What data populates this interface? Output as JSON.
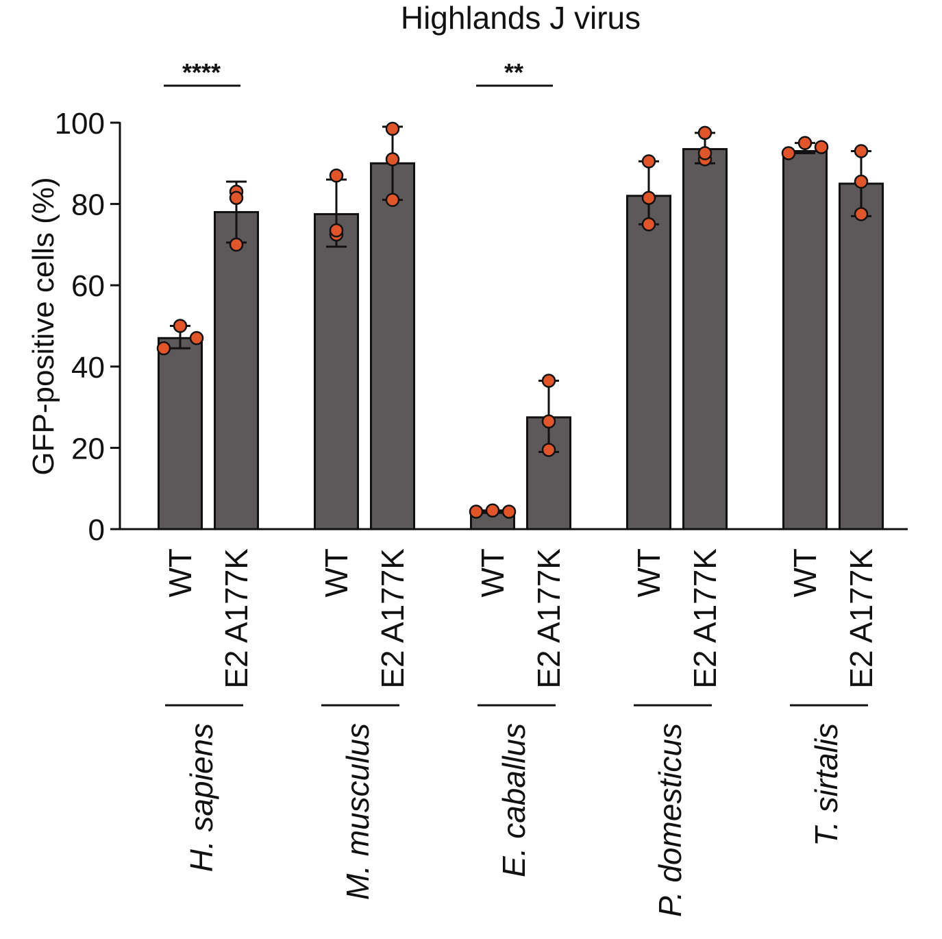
{
  "chart_data": {
    "type": "bar",
    "title": "Highlands J virus",
    "xlabel": "",
    "ylabel": "GFP-positive cells (%)",
    "ylim": [
      0,
      100
    ],
    "yticks": [
      0,
      20,
      40,
      60,
      80,
      100
    ],
    "grid": false,
    "legend": "none",
    "groups": [
      {
        "name": "H. sapiens",
        "bars": [
          {
            "label": "WT",
            "mean": 47,
            "sd_low": 44.5,
            "sd_high": 50,
            "points": [
              44.5,
              50,
              47
            ]
          },
          {
            "label": "E2 A177K",
            "mean": 78,
            "sd_low": 70.5,
            "sd_high": 85.5,
            "points": [
              83,
              70,
              81.5
            ]
          }
        ],
        "significance": "****"
      },
      {
        "name": "M. musculus",
        "bars": [
          {
            "label": "WT",
            "mean": 77.5,
            "sd_low": 69.5,
            "sd_high": 86,
            "points": [
              72.5,
              87,
              73.5
            ]
          },
          {
            "label": "E2 A177K",
            "mean": 90,
            "sd_low": 81,
            "sd_high": 99,
            "points": [
              98.5,
              91,
              81
            ]
          }
        ],
        "significance": ""
      },
      {
        "name": "E. caballus",
        "bars": [
          {
            "label": "WT",
            "mean": 4.3,
            "sd_low": 4,
            "sd_high": 4.6,
            "points": [
              4.3,
              4.6,
              4.3
            ]
          },
          {
            "label": "E2 A177K",
            "mean": 27.5,
            "sd_low": 19,
            "sd_high": 36.5,
            "points": [
              36.5,
              26.5,
              19.5
            ]
          }
        ],
        "significance": "**"
      },
      {
        "name": "P. domesticus",
        "bars": [
          {
            "label": "WT",
            "mean": 82,
            "sd_low": 75,
            "sd_high": 90.5,
            "points": [
              90.5,
              81.5,
              75
            ]
          },
          {
            "label": "E2 A177K",
            "mean": 93.5,
            "sd_low": 90,
            "sd_high": 97.5,
            "points": [
              91,
              97.5,
              92.5
            ]
          }
        ],
        "significance": ""
      },
      {
        "name": "T. sirtalis",
        "bars": [
          {
            "label": "WT",
            "mean": 93,
            "sd_low": 92.5,
            "sd_high": 95,
            "points": [
              92.5,
              95,
              94
            ]
          },
          {
            "label": "E2 A177K",
            "mean": 85,
            "sd_low": 77,
            "sd_high": 93,
            "points": [
              93,
              85.5,
              77.5
            ]
          }
        ],
        "significance": ""
      }
    ],
    "colors": {
      "bar_fill": "#5d5859",
      "bar_stroke": "#111111",
      "point_fill": "#e0562a",
      "point_stroke": "#111111",
      "axis": "#111111"
    }
  }
}
